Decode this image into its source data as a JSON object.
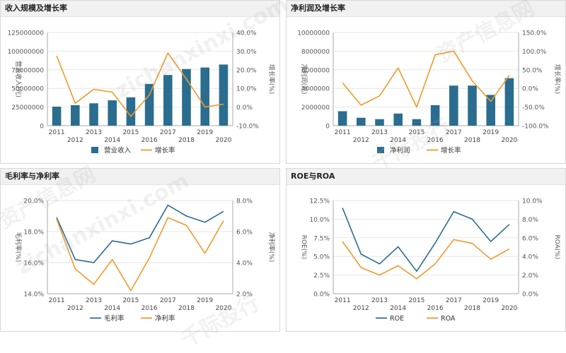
{
  "colors": {
    "bar": "#2a6d8f",
    "line1": "#2a6d8f",
    "line2": "#ef9a2b",
    "grid": "#e6e6e6",
    "axis": "#666666"
  },
  "panels": [
    {
      "title": "收入规模及增长率"
    },
    {
      "title": "净利润及增长率"
    },
    {
      "title": "毛利率与净利率"
    },
    {
      "title": "ROE与ROA"
    }
  ],
  "watermarks": [
    "资产信息网",
    "zichanxinxi.com",
    "千际投行"
  ],
  "chart_data": [
    {
      "type": "bar",
      "categories": [
        "2011",
        "2012",
        "2013",
        "2014",
        "2015",
        "2016",
        "2017",
        "2018",
        "2019",
        "2020"
      ],
      "series": [
        {
          "name": "营业收入",
          "type": "bar",
          "axis": "left",
          "values": [
            25500000,
            27500000,
            30000000,
            34000000,
            38000000,
            56000000,
            68000000,
            76000000,
            78000000,
            82000000
          ]
        },
        {
          "name": "增长率",
          "type": "line",
          "axis": "right",
          "values": [
            27.5,
            2.0,
            9.5,
            8.0,
            -5.0,
            6.5,
            29.0,
            15.0,
            0.0,
            1.5
          ]
        }
      ],
      "y_left": {
        "label": "营业收入(元)",
        "ticks": [
          "0",
          "25000000",
          "50000000",
          "75000000",
          "100000000",
          "125000000"
        ],
        "lim": [
          0,
          125000000
        ]
      },
      "y_right": {
        "label": "增长率(%)",
        "ticks": [
          "-10.0%",
          "0.0%",
          "10.0%",
          "20.0%",
          "30.0%",
          "40.0%"
        ],
        "lim": [
          -10,
          40
        ]
      },
      "legend": [
        "营业收入",
        "增长率"
      ],
      "grid": true
    },
    {
      "type": "bar",
      "categories": [
        "2011",
        "2012",
        "2013",
        "2014",
        "2015",
        "2016",
        "2017",
        "2018",
        "2019",
        "2020"
      ],
      "series": [
        {
          "name": "净利润",
          "type": "bar",
          "axis": "left",
          "values": [
            1550000,
            850000,
            700000,
            1300000,
            700000,
            2200000,
            4300000,
            4300000,
            3300000,
            5100000
          ]
        },
        {
          "name": "增长率",
          "type": "line",
          "axis": "right",
          "values": [
            15,
            -45,
            -20,
            55,
            -50,
            90,
            100,
            20,
            -35,
            35
          ]
        }
      ],
      "y_left": {
        "label": "净利润(元)",
        "ticks": [
          "0",
          "2000000",
          "4000000",
          "6000000",
          "8000000",
          "10000000"
        ],
        "lim": [
          0,
          10000000
        ]
      },
      "y_right": {
        "label": "增长率(%)",
        "ticks": [
          "-100.0%",
          "-50.0%",
          "0.0%",
          "50.0%",
          "100.0%",
          "150.0%"
        ],
        "lim": [
          -100,
          150
        ]
      },
      "legend": [
        "净利润",
        "增长率"
      ],
      "grid": true
    },
    {
      "type": "line",
      "categories": [
        "2011",
        "2012",
        "2013",
        "2014",
        "2015",
        "2016",
        "2017",
        "2018",
        "2019",
        "2020"
      ],
      "series": [
        {
          "name": "毛利率",
          "axis": "left",
          "values": [
            18.9,
            16.2,
            16.0,
            17.4,
            17.2,
            17.6,
            19.7,
            19.0,
            18.6,
            19.3
          ]
        },
        {
          "name": "净利率",
          "axis": "right",
          "values": [
            6.8,
            3.6,
            2.6,
            4.2,
            2.2,
            4.3,
            6.9,
            6.4,
            4.6,
            6.7
          ]
        }
      ],
      "y_left": {
        "label": "毛利率(%)",
        "ticks": [
          "14.0%",
          "16.0%",
          "18.0%",
          "20.0%"
        ],
        "lim": [
          14,
          20
        ]
      },
      "y_right": {
        "label": "净利率(%)",
        "ticks": [
          "2.0%",
          "4.0%",
          "6.0%",
          "8.0%"
        ],
        "lim": [
          2,
          8
        ]
      },
      "legend": [
        "毛利率",
        "净利率"
      ],
      "grid": true
    },
    {
      "type": "line",
      "categories": [
        "2011",
        "2012",
        "2013",
        "2014",
        "2015",
        "2016",
        "2017",
        "2018",
        "2019",
        "2020"
      ],
      "series": [
        {
          "name": "ROE",
          "axis": "left",
          "values": [
            11.5,
            5.3,
            4.0,
            6.3,
            3.0,
            6.8,
            11.0,
            10.0,
            7.0,
            9.3
          ]
        },
        {
          "name": "ROA",
          "axis": "right",
          "values": [
            5.6,
            2.8,
            2.0,
            3.0,
            1.6,
            3.2,
            5.8,
            5.4,
            3.7,
            4.8
          ]
        }
      ],
      "y_left": {
        "label": "ROE(%)",
        "ticks": [
          "0.0%",
          "2.5%",
          "5.0%",
          "7.5%",
          "10.0%",
          "12.5%"
        ],
        "lim": [
          0,
          12.5
        ]
      },
      "y_right": {
        "label": "ROA(%)",
        "ticks": [
          "0.0%",
          "2.0%",
          "4.0%",
          "6.0%",
          "8.0%",
          "10.0%"
        ],
        "lim": [
          0,
          10
        ]
      },
      "legend": [
        "ROE",
        "ROA"
      ],
      "grid": true
    }
  ]
}
